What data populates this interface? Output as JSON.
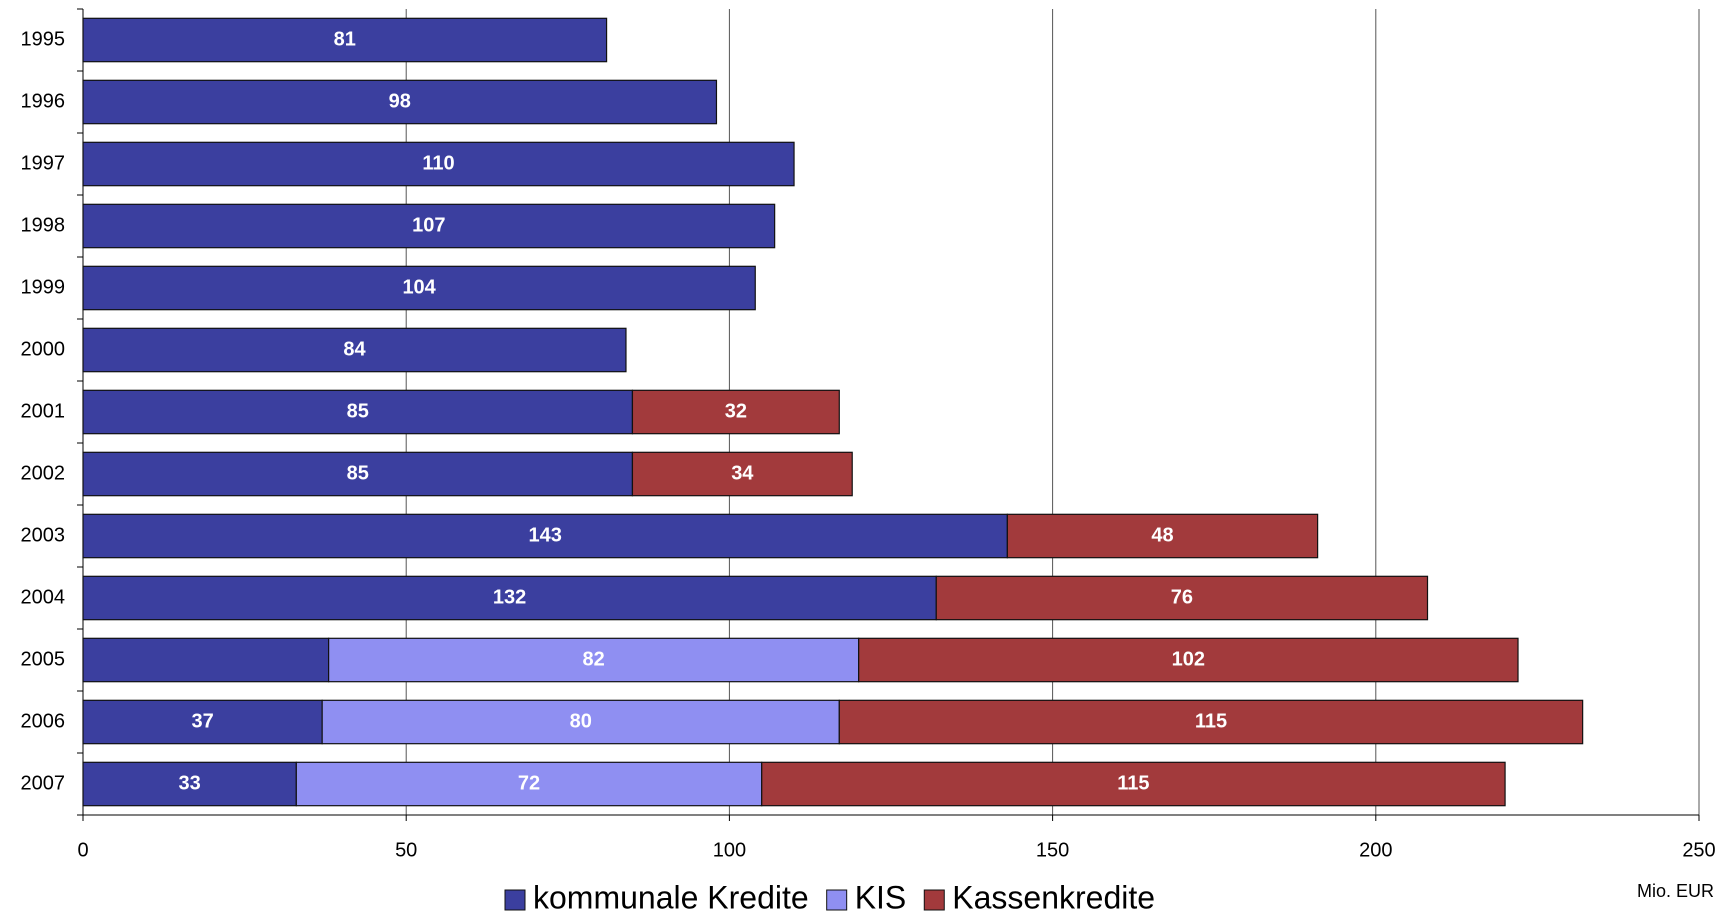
{
  "chart_data": {
    "type": "stacked-barh",
    "categories": [
      "1995",
      "1996",
      "1997",
      "1998",
      "1999",
      "2000",
      "2001",
      "2002",
      "2003",
      "2004",
      "2005",
      "2006",
      "2007"
    ],
    "series": [
      {
        "name": "kommunale Kredite",
        "color": "#3b3f9f",
        "values": [
          81,
          98,
          110,
          107,
          104,
          84,
          85,
          85,
          143,
          132,
          38,
          37,
          33
        ],
        "value_labels": [
          "81",
          "98",
          "110",
          "107",
          "104",
          "84",
          "85",
          "85",
          "143",
          "132",
          null,
          "37",
          "33"
        ]
      },
      {
        "name": "KIS",
        "color": "#8f8ff2",
        "values": [
          null,
          null,
          null,
          null,
          null,
          null,
          null,
          null,
          null,
          null,
          82,
          80,
          72
        ]
      },
      {
        "name": "Kassenkredite",
        "color": "#a23a3c",
        "values": [
          null,
          null,
          null,
          null,
          null,
          null,
          32,
          34,
          48,
          76,
          102,
          115,
          115
        ]
      }
    ],
    "xlim": [
      0,
      250
    ],
    "xticks": [
      0,
      50,
      100,
      150,
      200,
      250
    ],
    "x_label": "Mio. EUR",
    "grid": true,
    "legend": "bottom"
  }
}
